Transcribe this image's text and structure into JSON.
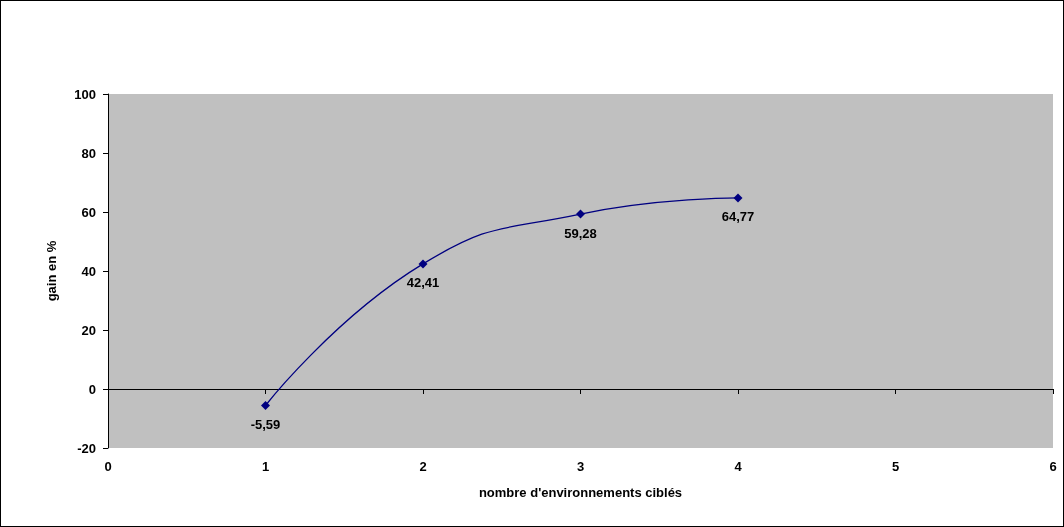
{
  "chart_data": {
    "type": "line",
    "x": [
      1,
      2,
      3,
      4
    ],
    "series": [
      {
        "color": "#000080",
        "values": [
          -5.59,
          42.41,
          59.28,
          64.77
        ],
        "value_labels": [
          "-5,59",
          "42,41",
          "59,28",
          "64,77"
        ]
      }
    ],
    "xlabel": "nombre d'environnements ciblés",
    "ylabel": "gain en %",
    "xlim": [
      0,
      6
    ],
    "xticks": [
      0,
      1,
      2,
      3,
      4,
      5,
      6
    ],
    "ylim": [
      -20,
      100
    ],
    "yticks": [
      -20,
      0,
      20,
      40,
      60,
      80,
      100
    ],
    "marker": "diamond",
    "line_style": "solid"
  }
}
